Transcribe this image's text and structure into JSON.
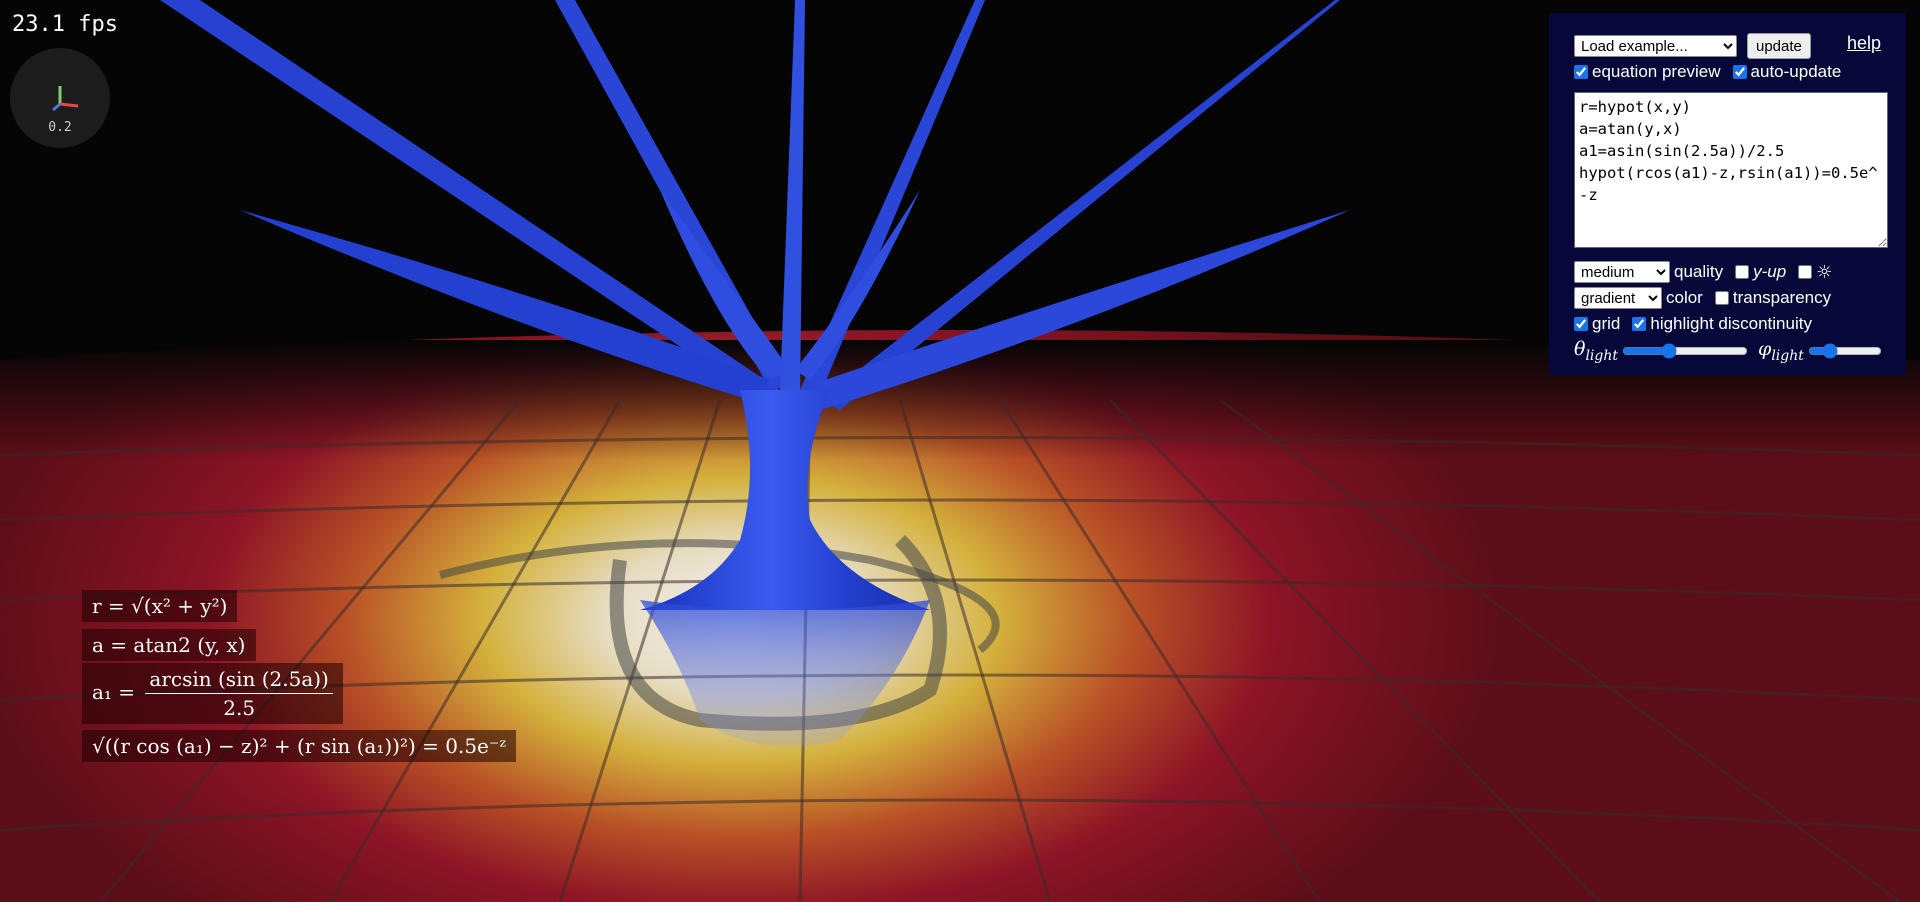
{
  "hud": {
    "fps": "23.1 fps",
    "axis_scale": "0.2"
  },
  "panel": {
    "example_select": "Load example...",
    "update_button": "update",
    "help_link": "help",
    "equation_preview_label": "equation preview",
    "equation_preview_checked": true,
    "auto_update_label": "auto-update",
    "auto_update_checked": true,
    "equation_text": "r=hypot(x,y)\na=atan(y,x)\na1=asin(sin(2.5a))/2.5\nhypot(rcos(a1)-z,rsin(a1))=0.5e^-z",
    "quality_select": "medium",
    "quality_label": "quality",
    "y_up_label": "y-up",
    "y_up_checked": false,
    "light_icon": "☼",
    "light_checked": false,
    "color_select": "gradient",
    "color_label": "color",
    "transparency_label": "transparency",
    "transparency_checked": false,
    "grid_label": "grid",
    "grid_checked": true,
    "highlight_label": "highlight discontinuity",
    "highlight_checked": true,
    "theta_symbol": "θ",
    "phi_symbol": "φ",
    "light_sub": "light",
    "theta_light_value": 0.35,
    "phi_light_value": 0.25
  },
  "equations": {
    "eq1": "r = √(x² + y²)",
    "eq2": "a = atan2 (y, x)",
    "eq3_lhs": "a₁ =",
    "eq3_num": "arcsin (sin (2.5a))",
    "eq3_den": "2.5",
    "eq4": "√((r cos (a₁) − z)² + (r sin (a₁))²) = 0.5e⁻ᶻ"
  },
  "colors": {
    "panel_bg": "#07083a",
    "surface_blue": "#2545d8",
    "floor_red": "#8e1424",
    "floor_yellow": "#d8b43a"
  }
}
